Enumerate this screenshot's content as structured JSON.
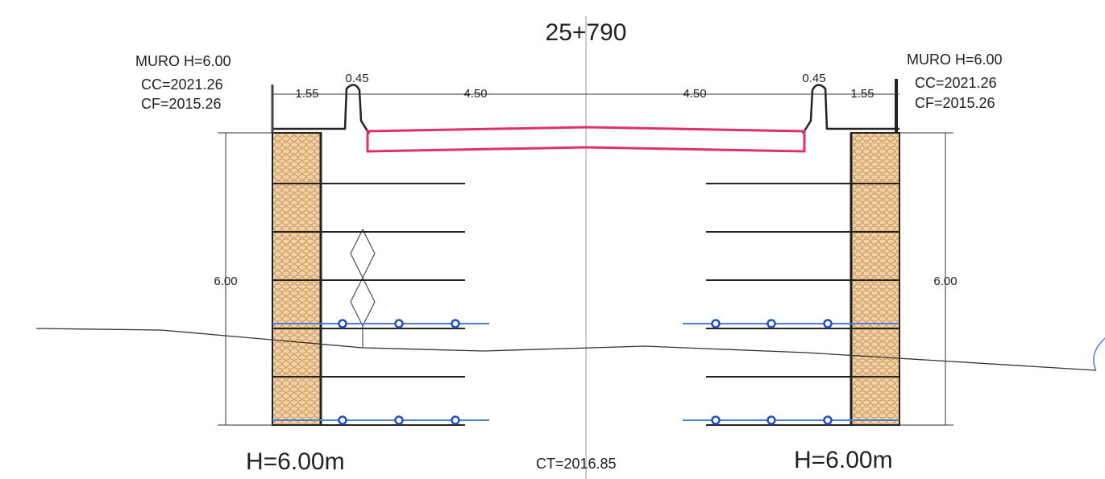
{
  "title": "25+790",
  "left": {
    "muro": "MURO  H=6.00",
    "cc": "CC=2021.26",
    "cf": "CF=2015.26",
    "height_dim": "6.00",
    "label": "H=6.00m"
  },
  "right": {
    "muro": "MURO  H=6.00",
    "cc": "CC=2021.26",
    "cf": "CF=2015.26",
    "height_dim": "6.00",
    "label": "H=6.00m"
  },
  "dimensions": [
    "1.55",
    "0.45",
    "4.50",
    "4.50",
    "0.45",
    "1.55"
  ],
  "ct": "CT=2016.85"
}
